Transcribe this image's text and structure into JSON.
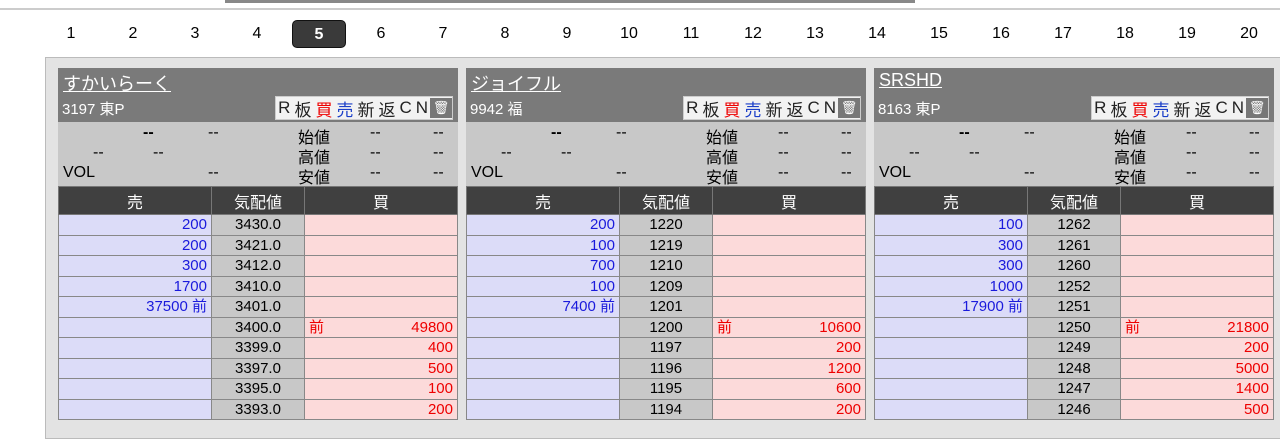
{
  "pages": [
    "1",
    "2",
    "3",
    "4",
    "5",
    "6",
    "7",
    "8",
    "9",
    "10",
    "11",
    "12",
    "13",
    "14",
    "15",
    "16",
    "17",
    "18",
    "19",
    "20"
  ],
  "active_page": "5",
  "toolbar": {
    "r": "R",
    "ita": "板",
    "buy": "買",
    "sell": "売",
    "new": "新",
    "ret": "返",
    "c": "C",
    "n": "N",
    "trash": "🗑"
  },
  "labels": {
    "open": "始値",
    "high": "高値",
    "low": "安値",
    "vol": "VOL",
    "dash": "--",
    "col_sell": "売",
    "col_price": "気配値",
    "col_buy": "買",
    "mae": "前"
  },
  "colors": {
    "sell": "#1a1adc",
    "buy": "#e00000",
    "active_page": "#3a3a3a"
  },
  "panels": [
    {
      "name": "すかいらーく",
      "code": "3197 東P",
      "rows": [
        {
          "sell": "200",
          "price": "3430.0",
          "buy": ""
        },
        {
          "sell": "200",
          "price": "3421.0",
          "buy": ""
        },
        {
          "sell": "300",
          "price": "3412.0",
          "buy": ""
        },
        {
          "sell": "1700",
          "price": "3410.0",
          "buy": ""
        },
        {
          "sell": "37500 前",
          "price": "3401.0",
          "buy": ""
        },
        {
          "sell": "",
          "price": "3400.0",
          "buy": "49800",
          "buy_mae": "前"
        },
        {
          "sell": "",
          "price": "3399.0",
          "buy": "400"
        },
        {
          "sell": "",
          "price": "3397.0",
          "buy": "500"
        },
        {
          "sell": "",
          "price": "3395.0",
          "buy": "100"
        },
        {
          "sell": "",
          "price": "3393.0",
          "buy": "200"
        }
      ]
    },
    {
      "name": "ジョイフル",
      "code": "9942 福",
      "rows": [
        {
          "sell": "200",
          "price": "1220",
          "buy": ""
        },
        {
          "sell": "100",
          "price": "1219",
          "buy": ""
        },
        {
          "sell": "700",
          "price": "1210",
          "buy": ""
        },
        {
          "sell": "100",
          "price": "1209",
          "buy": ""
        },
        {
          "sell": "7400 前",
          "price": "1201",
          "buy": ""
        },
        {
          "sell": "",
          "price": "1200",
          "buy": "10600",
          "buy_mae": "前"
        },
        {
          "sell": "",
          "price": "1197",
          "buy": "200"
        },
        {
          "sell": "",
          "price": "1196",
          "buy": "1200"
        },
        {
          "sell": "",
          "price": "1195",
          "buy": "600"
        },
        {
          "sell": "",
          "price": "1194",
          "buy": "200"
        }
      ]
    },
    {
      "name": "SRSHD",
      "code": "8163 東P",
      "rows": [
        {
          "sell": "100",
          "price": "1262",
          "buy": ""
        },
        {
          "sell": "300",
          "price": "1261",
          "buy": ""
        },
        {
          "sell": "300",
          "price": "1260",
          "buy": ""
        },
        {
          "sell": "1000",
          "price": "1252",
          "buy": ""
        },
        {
          "sell": "17900 前",
          "price": "1251",
          "buy": ""
        },
        {
          "sell": "",
          "price": "1250",
          "buy": "21800",
          "buy_mae": "前"
        },
        {
          "sell": "",
          "price": "1249",
          "buy": "200"
        },
        {
          "sell": "",
          "price": "1248",
          "buy": "5000"
        },
        {
          "sell": "",
          "price": "1247",
          "buy": "1400"
        },
        {
          "sell": "",
          "price": "1246",
          "buy": "500"
        }
      ]
    }
  ]
}
